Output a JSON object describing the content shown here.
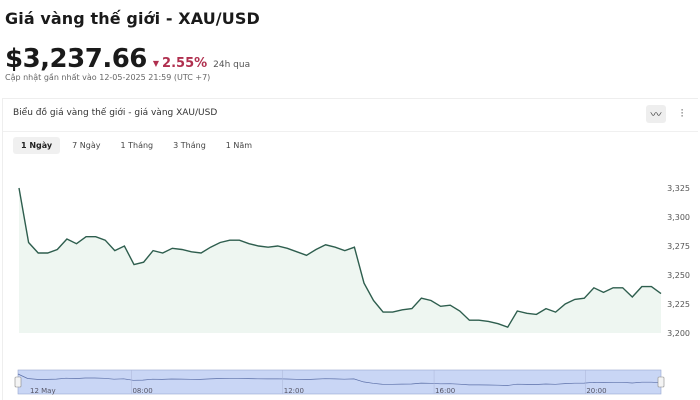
{
  "header": {
    "title": "Giá vàng thế giới - XAU/USD",
    "price": "$3,237.66",
    "change": "2.55%",
    "change_direction": "down",
    "change_color": "#b0304f",
    "period": "24h qua",
    "updated": "Cập nhật gần nhất vào 12-05-2025 21:59 (UTC +7)"
  },
  "chart_card": {
    "title": "Biểu đồ giá vàng thế giới - giá vàng XAU/USD",
    "icons": [
      "line-chart-icon",
      "candlestick-icon"
    ],
    "tabs": [
      {
        "label": "1 Ngày",
        "active": true
      },
      {
        "label": "7 Ngày"
      },
      {
        "label": "1 Tháng"
      },
      {
        "label": "3 Tháng"
      },
      {
        "label": "1 Năm"
      }
    ]
  },
  "chart_data": {
    "type": "area",
    "x_range": [
      "05:00",
      "22:00"
    ],
    "ylim": [
      3200,
      3325
    ],
    "y_ticks": [
      "3,325",
      "3,300",
      "3,275",
      "3,250",
      "3,225",
      "3,200"
    ],
    "y_tick_values": [
      3325,
      3300,
      3275,
      3250,
      3225,
      3200
    ],
    "line_color": "#2e5e4e",
    "fill_color": "#eef6f1",
    "values": [
      3325,
      3278,
      3269,
      3269,
      3272,
      3281,
      3277,
      3283,
      3283,
      3280,
      3271,
      3275,
      3259,
      3261,
      3271,
      3269,
      3273,
      3272,
      3270,
      3269,
      3274,
      3278,
      3280,
      3280,
      3277,
      3275,
      3274,
      3275,
      3273,
      3270,
      3267,
      3272,
      3276,
      3274,
      3271,
      3274,
      3243,
      3228,
      3218,
      3218,
      3220,
      3221,
      3230,
      3228,
      3223,
      3224,
      3219,
      3211,
      3211,
      3210,
      3208,
      3205,
      3219,
      3217,
      3216,
      3221,
      3218,
      3225,
      3229,
      3230,
      3239,
      3235,
      3239,
      3239,
      3231,
      3240,
      3240,
      3234
    ],
    "navigator": {
      "labels": [
        "12 May",
        "08:00",
        "12:00",
        "16:00",
        "20:00"
      ],
      "label_times": [
        "04:45",
        "08:00",
        "12:00",
        "16:00",
        "20:00"
      ],
      "fill_color": "#c9d6f5"
    }
  }
}
